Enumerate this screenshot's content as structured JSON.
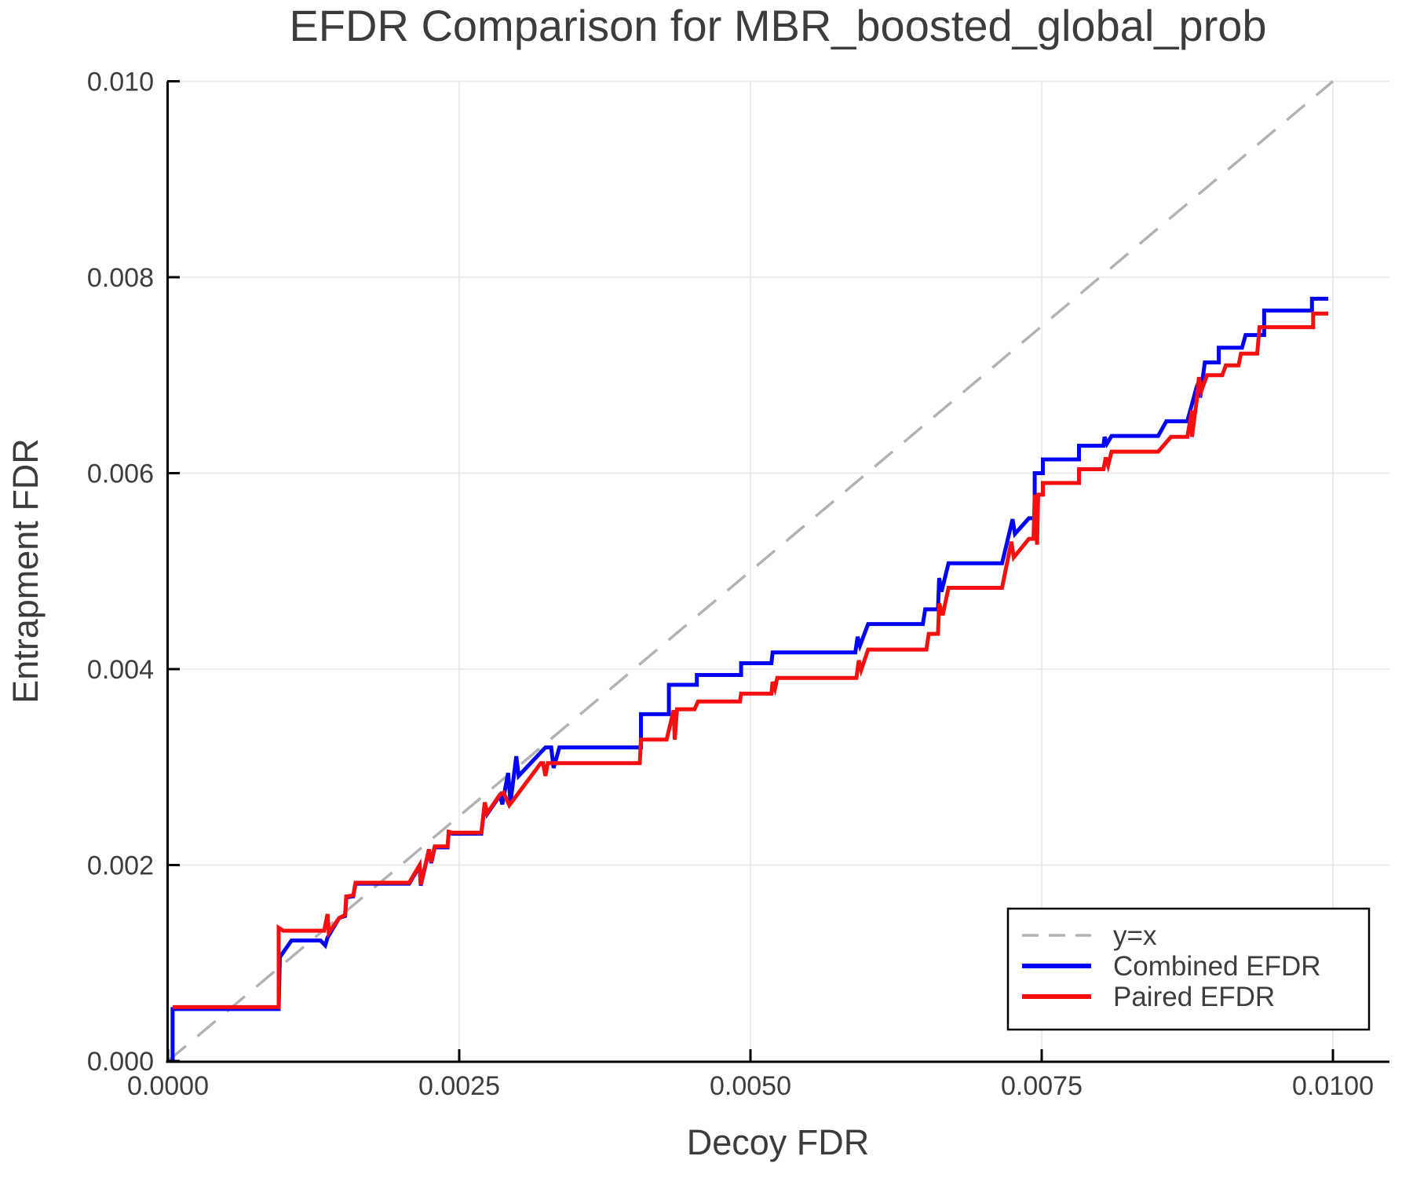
{
  "chart_data": {
    "type": "line",
    "title": "EFDR Comparison for MBR_boosted_global_prob",
    "xlabel": "Decoy FDR",
    "ylabel": "Entrapment FDR",
    "xlim": [
      0.0,
      0.010485
    ],
    "ylim": [
      0.0,
      0.01
    ],
    "grid": true,
    "x_ticks": {
      "values": [
        0.0,
        0.0025,
        0.005,
        0.0075,
        0.01
      ],
      "labels": [
        "0.0000",
        "0.0025",
        "0.0050",
        "0.0075",
        "0.0100"
      ]
    },
    "y_ticks": {
      "values": [
        0.0,
        0.002,
        0.004,
        0.006,
        0.008,
        0.01
      ],
      "labels": [
        "0.000",
        "0.002",
        "0.004",
        "0.006",
        "0.008",
        "0.010"
      ]
    },
    "identity_line": {
      "label": "y=x",
      "style": "dashed",
      "color": "#b3b3b3",
      "from": [
        0.0,
        0.0
      ],
      "to": [
        0.01,
        0.01
      ]
    },
    "legend": {
      "position": "lower right",
      "entries": [
        {
          "label": "y=x",
          "color": "#b3b3b3",
          "dashed": true
        },
        {
          "label": "Combined EFDR",
          "color": "#0404f5",
          "dashed": false
        },
        {
          "label": "Paired EFDR",
          "color": "#f50f0f",
          "dashed": false
        }
      ]
    },
    "series": [
      {
        "name": "Combined EFDR",
        "color": "#0404f5",
        "points": [
          [
            4e-05,
            0.0
          ],
          [
            4e-05,
            0.00053
          ],
          [
            0.00095,
            0.00053
          ],
          [
            0.00096,
            0.00106
          ],
          [
            0.00106,
            0.00123
          ],
          [
            0.00131,
            0.00123
          ],
          [
            0.00135,
            0.00118
          ],
          [
            0.00137,
            0.00126
          ],
          [
            0.00147,
            0.00146
          ],
          [
            0.00152,
            0.00148
          ],
          [
            0.00153,
            0.00167
          ],
          [
            0.00159,
            0.00168
          ],
          [
            0.00161,
            0.00181
          ],
          [
            0.00207,
            0.00181
          ],
          [
            0.00216,
            0.00199
          ],
          [
            0.00217,
            0.00179
          ],
          [
            0.00224,
            0.00215
          ],
          [
            0.00226,
            0.00202
          ],
          [
            0.00229,
            0.00218
          ],
          [
            0.0024,
            0.00218
          ],
          [
            0.00241,
            0.00233
          ],
          [
            0.00244,
            0.00232
          ],
          [
            0.00269,
            0.00232
          ],
          [
            0.00272,
            0.00263
          ],
          [
            0.00274,
            0.00252
          ],
          [
            0.00285,
            0.00271
          ],
          [
            0.00287,
            0.00262
          ],
          [
            0.00292,
            0.00294
          ],
          [
            0.00294,
            0.00264
          ],
          [
            0.00299,
            0.00311
          ],
          [
            0.00301,
            0.00291
          ],
          [
            0.00324,
            0.0032
          ],
          [
            0.00329,
            0.0032
          ],
          [
            0.00331,
            0.00299
          ],
          [
            0.00336,
            0.0032
          ],
          [
            0.00406,
            0.0032
          ],
          [
            0.00406,
            0.00354
          ],
          [
            0.0043,
            0.00354
          ],
          [
            0.0043,
            0.00384
          ],
          [
            0.00454,
            0.00384
          ],
          [
            0.00454,
            0.00394
          ],
          [
            0.00492,
            0.00394
          ],
          [
            0.00492,
            0.00406
          ],
          [
            0.00518,
            0.00406
          ],
          [
            0.00519,
            0.00417
          ],
          [
            0.0059,
            0.00417
          ],
          [
            0.00592,
            0.00433
          ],
          [
            0.00594,
            0.00424
          ],
          [
            0.00601,
            0.00446
          ],
          [
            0.00648,
            0.00446
          ],
          [
            0.0065,
            0.00461
          ],
          [
            0.00661,
            0.00461
          ],
          [
            0.00662,
            0.00493
          ],
          [
            0.00664,
            0.00479
          ],
          [
            0.0067,
            0.00508
          ],
          [
            0.00716,
            0.00508
          ],
          [
            0.00725,
            0.00553
          ],
          [
            0.00727,
            0.00538
          ],
          [
            0.00739,
            0.00554
          ],
          [
            0.00744,
            0.00554
          ],
          [
            0.00744,
            0.006
          ],
          [
            0.00751,
            0.006
          ],
          [
            0.00751,
            0.00614
          ],
          [
            0.00782,
            0.00614
          ],
          [
            0.00782,
            0.00628
          ],
          [
            0.00803,
            0.00628
          ],
          [
            0.00804,
            0.00637
          ],
          [
            0.00806,
            0.0063
          ],
          [
            0.0081,
            0.00638
          ],
          [
            0.0085,
            0.00638
          ],
          [
            0.00857,
            0.00653
          ],
          [
            0.00875,
            0.00653
          ],
          [
            0.00883,
            0.00688
          ],
          [
            0.00886,
            0.00696
          ],
          [
            0.00886,
            0.00677
          ],
          [
            0.0089,
            0.00713
          ],
          [
            0.00902,
            0.00713
          ],
          [
            0.00902,
            0.00728
          ],
          [
            0.00922,
            0.00728
          ],
          [
            0.00925,
            0.00741
          ],
          [
            0.00941,
            0.00741
          ],
          [
            0.00941,
            0.00766
          ],
          [
            0.00982,
            0.00766
          ],
          [
            0.00982,
            0.00778
          ],
          [
            0.00996,
            0.00778
          ]
        ]
      },
      {
        "name": "Paired EFDR",
        "color": "#f50f0f",
        "points": [
          [
            4e-05,
            0.00055
          ],
          [
            0.00095,
            0.00055
          ],
          [
            0.00095,
            0.00136
          ],
          [
            0.00099,
            0.00133
          ],
          [
            0.00134,
            0.00133
          ],
          [
            0.00137,
            0.0015
          ],
          [
            0.00138,
            0.00131
          ],
          [
            0.00147,
            0.00146
          ],
          [
            0.00152,
            0.00149
          ],
          [
            0.00153,
            0.00168
          ],
          [
            0.00159,
            0.00169
          ],
          [
            0.00161,
            0.00182
          ],
          [
            0.00207,
            0.00182
          ],
          [
            0.00216,
            0.002
          ],
          [
            0.00217,
            0.0018
          ],
          [
            0.00224,
            0.00216
          ],
          [
            0.00226,
            0.00203
          ],
          [
            0.00229,
            0.00219
          ],
          [
            0.0024,
            0.00219
          ],
          [
            0.00241,
            0.00234
          ],
          [
            0.00244,
            0.00233
          ],
          [
            0.00269,
            0.00233
          ],
          [
            0.00272,
            0.00264
          ],
          [
            0.00274,
            0.00253
          ],
          [
            0.00285,
            0.00272
          ],
          [
            0.00288,
            0.00274
          ],
          [
            0.00293,
            0.00261
          ],
          [
            0.0032,
            0.00304
          ],
          [
            0.00322,
            0.00304
          ],
          [
            0.00324,
            0.00291
          ],
          [
            0.00326,
            0.00304
          ],
          [
            0.00405,
            0.00304
          ],
          [
            0.00406,
            0.00328
          ],
          [
            0.00428,
            0.00328
          ],
          [
            0.00434,
            0.00358
          ],
          [
            0.00435,
            0.00328
          ],
          [
            0.00437,
            0.00359
          ],
          [
            0.00452,
            0.00359
          ],
          [
            0.00455,
            0.00367
          ],
          [
            0.00491,
            0.00367
          ],
          [
            0.00492,
            0.00375
          ],
          [
            0.00518,
            0.00375
          ],
          [
            0.00519,
            0.00387
          ],
          [
            0.00521,
            0.0038
          ],
          [
            0.00523,
            0.00391
          ],
          [
            0.00591,
            0.00391
          ],
          [
            0.00593,
            0.00409
          ],
          [
            0.00595,
            0.00399
          ],
          [
            0.00601,
            0.0042
          ],
          [
            0.00651,
            0.0042
          ],
          [
            0.00653,
            0.00436
          ],
          [
            0.00661,
            0.00436
          ],
          [
            0.00662,
            0.00467
          ],
          [
            0.00665,
            0.00455
          ],
          [
            0.0067,
            0.00483
          ],
          [
            0.00716,
            0.00483
          ],
          [
            0.00724,
            0.0053
          ],
          [
            0.00726,
            0.00514
          ],
          [
            0.00739,
            0.00533
          ],
          [
            0.00743,
            0.00533
          ],
          [
            0.00744,
            0.00578
          ],
          [
            0.00746,
            0.00527
          ],
          [
            0.00747,
            0.00578
          ],
          [
            0.00751,
            0.00578
          ],
          [
            0.00751,
            0.0059
          ],
          [
            0.00782,
            0.0059
          ],
          [
            0.00782,
            0.00604
          ],
          [
            0.00803,
            0.00604
          ],
          [
            0.00805,
            0.00616
          ],
          [
            0.00807,
            0.00608
          ],
          [
            0.0081,
            0.00622
          ],
          [
            0.0085,
            0.00622
          ],
          [
            0.00861,
            0.00637
          ],
          [
            0.00875,
            0.00637
          ],
          [
            0.00879,
            0.00664
          ],
          [
            0.00879,
            0.00637
          ],
          [
            0.00883,
            0.00674
          ],
          [
            0.00885,
            0.00698
          ],
          [
            0.00887,
            0.00684
          ],
          [
            0.00892,
            0.007
          ],
          [
            0.00905,
            0.007
          ],
          [
            0.00908,
            0.0071
          ],
          [
            0.00919,
            0.0071
          ],
          [
            0.00921,
            0.00722
          ],
          [
            0.00935,
            0.00722
          ],
          [
            0.00937,
            0.00749
          ],
          [
            0.00983,
            0.00749
          ],
          [
            0.00983,
            0.00763
          ],
          [
            0.00996,
            0.00763
          ]
        ]
      }
    ],
    "colors": {
      "background": "#ffffff",
      "grid": "#e7e7e7",
      "spine": "#000000",
      "tick_label": "#3d3d3d",
      "title": "#3c3c3c",
      "axis_label": "#3c3c3c",
      "legend_border": "#000000",
      "legend_text": "#3d3d3d"
    }
  }
}
